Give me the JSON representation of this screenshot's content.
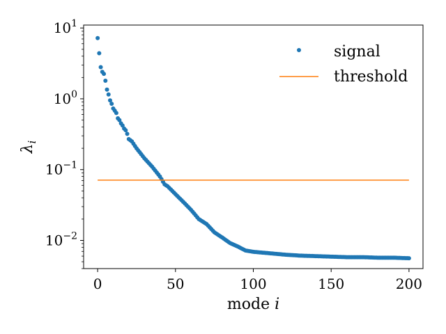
{
  "chart_data": {
    "type": "scatter",
    "xlabel": "mode i",
    "ylabel": "λi",
    "yscale": "log",
    "xlim": [
      -9,
      209
    ],
    "ylim": [
      0.004,
      11
    ],
    "x_ticks": [
      0,
      50,
      100,
      150,
      200
    ],
    "y_ticks": [
      {
        "value": 10,
        "base": "10",
        "exp": "1"
      },
      {
        "value": 1,
        "base": "10",
        "exp": "0"
      },
      {
        "value": 0.1,
        "base": "10",
        "exp": "−1"
      },
      {
        "value": 0.01,
        "base": "10",
        "exp": "−2"
      }
    ],
    "grid": false,
    "legend": "top-right",
    "series": [
      {
        "name": "signal",
        "kind": "points",
        "color": "#1f77b4",
        "anchors": [
          [
            0,
            7.2
          ],
          [
            1,
            4.4
          ],
          [
            2,
            2.8
          ],
          [
            3,
            2.4
          ],
          [
            4,
            2.25
          ],
          [
            5,
            1.8
          ],
          [
            6,
            1.35
          ],
          [
            7,
            1.15
          ],
          [
            8,
            0.95
          ],
          [
            9,
            0.85
          ],
          [
            10,
            0.73
          ],
          [
            11,
            0.68
          ],
          [
            12,
            0.63
          ],
          [
            13,
            0.53
          ],
          [
            14,
            0.5
          ],
          [
            15,
            0.45
          ],
          [
            16,
            0.42
          ],
          [
            17,
            0.38
          ],
          [
            18,
            0.36
          ],
          [
            19,
            0.32
          ],
          [
            20,
            0.27
          ],
          [
            22,
            0.25
          ],
          [
            25,
            0.2
          ],
          [
            30,
            0.145
          ],
          [
            35,
            0.11
          ],
          [
            40,
            0.08
          ],
          [
            43,
            0.062
          ],
          [
            45,
            0.058
          ],
          [
            50,
            0.045
          ],
          [
            55,
            0.035
          ],
          [
            60,
            0.027
          ],
          [
            65,
            0.02
          ],
          [
            70,
            0.017
          ],
          [
            75,
            0.013
          ],
          [
            80,
            0.011
          ],
          [
            85,
            0.0092
          ],
          [
            90,
            0.0082
          ],
          [
            95,
            0.0072
          ],
          [
            100,
            0.0069
          ],
          [
            110,
            0.0066
          ],
          [
            120,
            0.0063
          ],
          [
            130,
            0.0061
          ],
          [
            140,
            0.006
          ],
          [
            150,
            0.0059
          ],
          [
            160,
            0.0058
          ],
          [
            170,
            0.0058
          ],
          [
            180,
            0.0057
          ],
          [
            190,
            0.0057
          ],
          [
            200,
            0.0056
          ]
        ],
        "x_range": [
          0,
          200
        ]
      },
      {
        "name": "threshold",
        "kind": "line",
        "color": "#ff7f0e",
        "x": [
          0,
          200
        ],
        "y": [
          0.071,
          0.071
        ]
      }
    ]
  }
}
